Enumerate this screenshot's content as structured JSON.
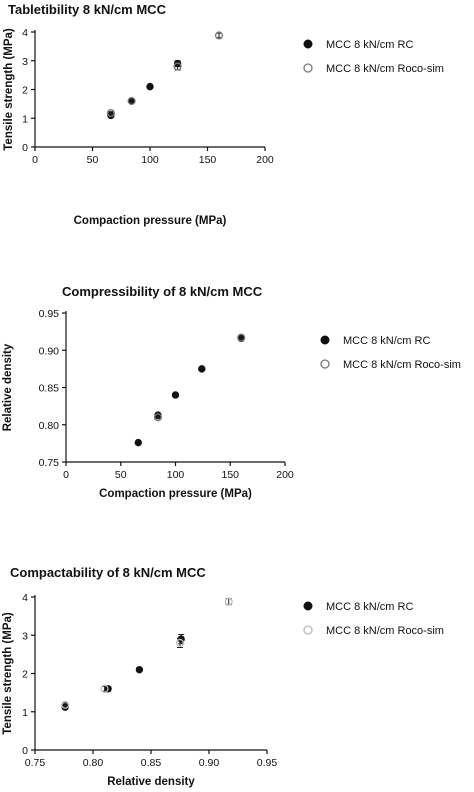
{
  "chart_data": [
    {
      "type": "scatter",
      "title": "Tabletibility 8 kN/cm MCC",
      "xlabel": "Compaction pressure (MPa)",
      "ylabel": "Tensile strength (MPa)",
      "xlim": [
        0,
        200
      ],
      "ylim": [
        0,
        4
      ],
      "xticks": [
        "0",
        "50",
        "100",
        "150",
        "200"
      ],
      "yticks": [
        "0",
        "1",
        "2",
        "3",
        "4"
      ],
      "legend_position": "right",
      "series": [
        {
          "name": "MCC 8 kN/cm RC",
          "marker": "filled-circle",
          "color": "#111111",
          "points": [
            {
              "x": 66,
              "y": 1.1,
              "err": 0.05
            },
            {
              "x": 84,
              "y": 1.6,
              "err": 0.06
            },
            {
              "x": 100,
              "y": 2.1,
              "err": 0.04
            },
            {
              "x": 124,
              "y": 2.9,
              "err": 0.1
            }
          ]
        },
        {
          "name": "MCC 8 kN/cm Roco-sim",
          "marker": "open-circle",
          "color": "#777777",
          "points": [
            {
              "x": 66,
              "y": 1.18,
              "err": 0.05
            },
            {
              "x": 84,
              "y": 1.6,
              "err": 0.06
            },
            {
              "x": 124,
              "y": 2.8,
              "err": 0.12
            },
            {
              "x": 160,
              "y": 3.88,
              "err": 0.08
            }
          ]
        }
      ]
    },
    {
      "type": "scatter",
      "title": "Compressibility of 8 kN/cm MCC",
      "xlabel": "Compaction pressure (MPa)",
      "ylabel": "Relative density",
      "xlim": [
        0,
        200
      ],
      "ylim": [
        0.75,
        0.95
      ],
      "xticks": [
        "0",
        "50",
        "100",
        "150",
        "200"
      ],
      "yticks": [
        "0.75",
        "0.80",
        "0.85",
        "0.90",
        "0.95"
      ],
      "legend_position": "right",
      "series": [
        {
          "name": "MCC 8 kN/cm RC",
          "marker": "filled-circle",
          "color": "#111111",
          "points": [
            {
              "x": 66,
              "y": 0.776,
              "err": 0.001
            },
            {
              "x": 84,
              "y": 0.813,
              "err": 0.002
            },
            {
              "x": 100,
              "y": 0.84,
              "err": 0.001
            },
            {
              "x": 124,
              "y": 0.875,
              "err": 0.001
            },
            {
              "x": 160,
              "y": 0.916,
              "err": 0.002
            }
          ]
        },
        {
          "name": "MCC 8 kN/cm Roco-sim",
          "marker": "open-circle",
          "color": "#777777",
          "points": [
            {
              "x": 84,
              "y": 0.81,
              "err": 0.002
            },
            {
              "x": 160,
              "y": 0.917,
              "err": 0.002
            }
          ]
        }
      ]
    },
    {
      "type": "scatter",
      "title": "Compactability of 8 kN/cm MCC",
      "xlabel": "Relative density",
      "ylabel": "Tensile strength (MPa)",
      "xlim": [
        0.75,
        0.95
      ],
      "ylim": [
        0,
        4
      ],
      "xticks": [
        "0.75",
        "0.80",
        "0.85",
        "0.90",
        "0.95"
      ],
      "yticks": [
        "0",
        "1",
        "2",
        "3",
        "4"
      ],
      "legend_position": "right",
      "series": [
        {
          "name": "MCC 8 kN/cm RC",
          "marker": "filled-circle",
          "color": "#111111",
          "points": [
            {
              "x": 0.776,
              "y": 1.12,
              "err": 0.05
            },
            {
              "x": 0.813,
              "y": 1.6,
              "err": 0.06
            },
            {
              "x": 0.84,
              "y": 2.1,
              "err": 0.04
            },
            {
              "x": 0.876,
              "y": 2.9,
              "err": 0.12
            }
          ]
        },
        {
          "name": "MCC 8 kN/cm Roco-sim",
          "marker": "open-circle",
          "color": "#bbbbbb",
          "points": [
            {
              "x": 0.776,
              "y": 1.18,
              "err": 0.05
            },
            {
              "x": 0.81,
              "y": 1.6,
              "err": 0.06
            },
            {
              "x": 0.875,
              "y": 2.8,
              "err": 0.12
            },
            {
              "x": 0.917,
              "y": 3.88,
              "err": 0.08
            }
          ]
        }
      ]
    }
  ]
}
